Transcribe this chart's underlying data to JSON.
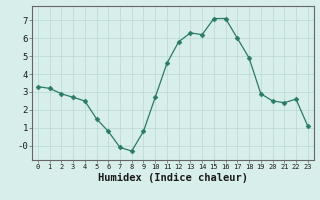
{
  "x": [
    0,
    1,
    2,
    3,
    4,
    5,
    6,
    7,
    8,
    9,
    10,
    11,
    12,
    13,
    14,
    15,
    16,
    17,
    18,
    19,
    20,
    21,
    22,
    23
  ],
  "y": [
    3.3,
    3.2,
    2.9,
    2.7,
    2.5,
    1.5,
    0.8,
    -0.1,
    -0.3,
    0.8,
    2.7,
    4.6,
    5.8,
    6.3,
    6.2,
    7.1,
    7.1,
    6.0,
    4.9,
    2.9,
    2.5,
    2.4,
    2.6,
    1.1
  ],
  "xlabel": "Humidex (Indice chaleur)",
  "ylim": [
    -0.8,
    7.8
  ],
  "xlim": [
    -0.5,
    23.5
  ],
  "yticks": [
    0,
    1,
    2,
    3,
    4,
    5,
    6,
    7
  ],
  "ytick_labels": [
    "-0",
    "1",
    "2",
    "3",
    "4",
    "5",
    "6",
    "7"
  ],
  "xticks": [
    0,
    1,
    2,
    3,
    4,
    5,
    6,
    7,
    8,
    9,
    10,
    11,
    12,
    13,
    14,
    15,
    16,
    17,
    18,
    19,
    20,
    21,
    22,
    23
  ],
  "line_color": "#2a7a68",
  "marker": "D",
  "marker_size": 2.5,
  "bg_color": "#d8eeea",
  "grid_color": "#b8d8d4",
  "axis_color": "#666666",
  "xlabel_fontsize": 7.5,
  "ytick_fontsize": 6.5,
  "xtick_fontsize": 5.0
}
